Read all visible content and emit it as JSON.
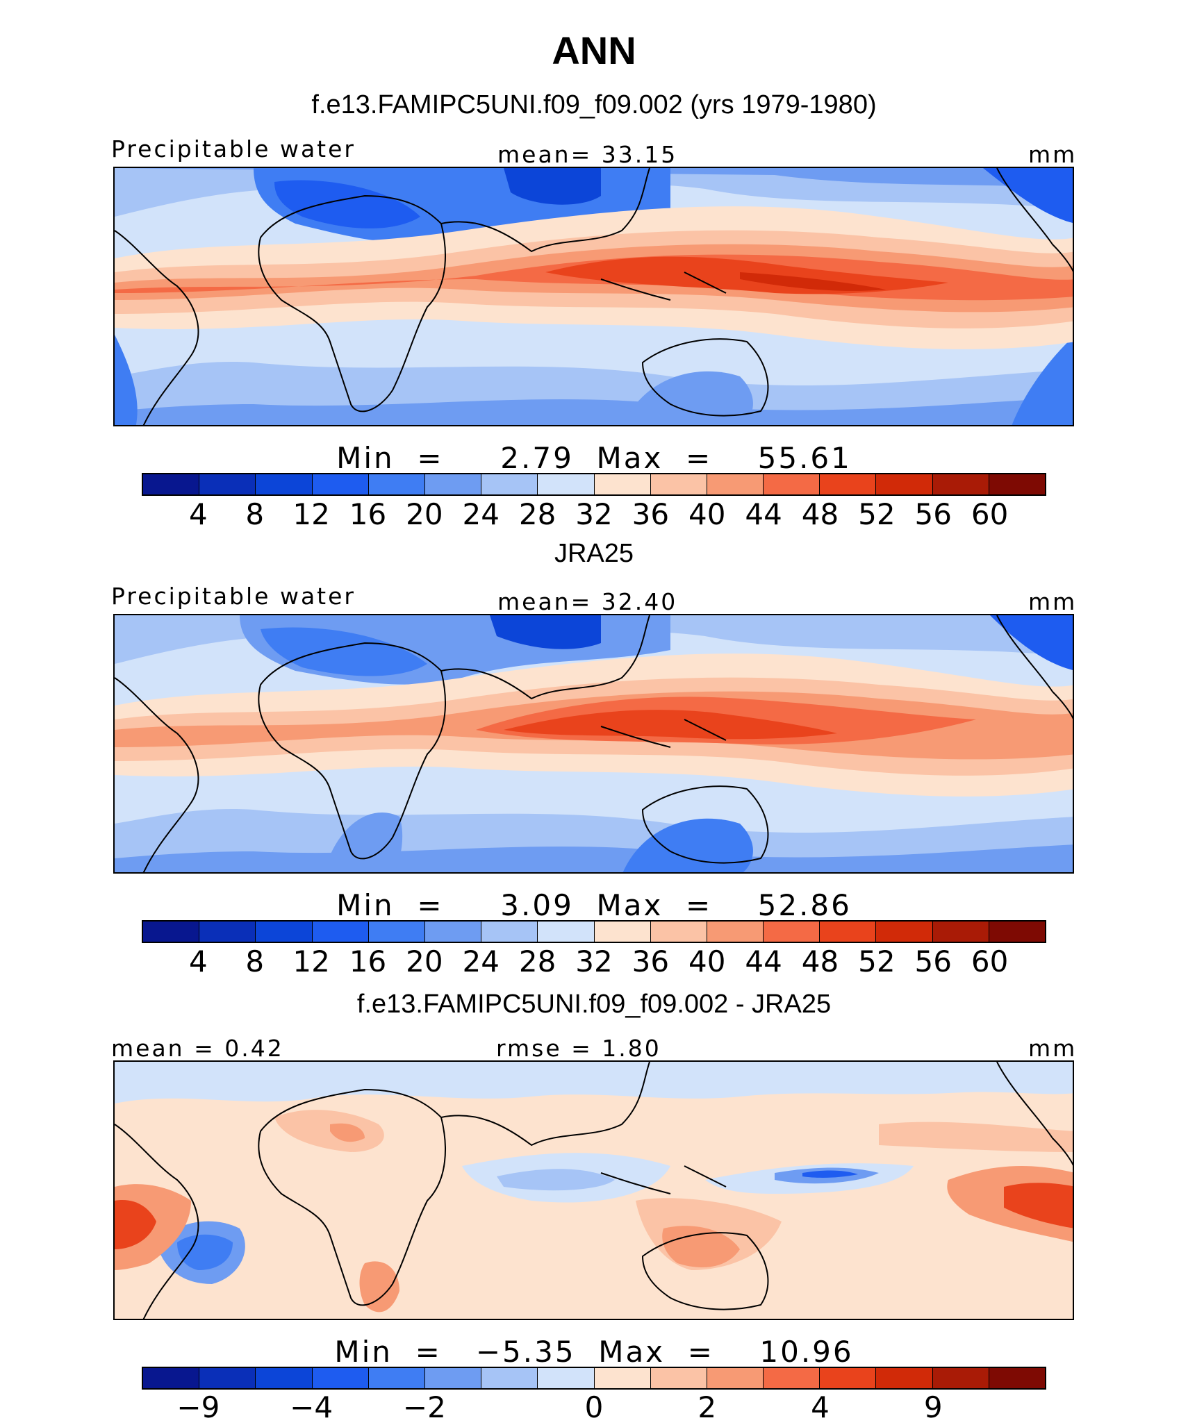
{
  "title": "ANN",
  "palettes": {
    "abs": [
      "#08178f",
      "#0a2fb8",
      "#0c45d8",
      "#1e5cf0",
      "#3f7df3",
      "#6e9cf2",
      "#a6c4f6",
      "#d2e3fa",
      "#fde3cf",
      "#fbc3a6",
      "#f79a74",
      "#f46a45",
      "#e9431c",
      "#d12a08",
      "#a91b06",
      "#7e0a03"
    ],
    "diff": [
      "#08178f",
      "#0a2fb8",
      "#0c45d8",
      "#1e5cf0",
      "#3f7df3",
      "#6e9cf2",
      "#a6c4f6",
      "#d2e3fa",
      "#fde3cf",
      "#fbc3a6",
      "#f79a74",
      "#f46a45",
      "#e9431c",
      "#d12a08",
      "#a91b06",
      "#7e0a03"
    ]
  },
  "panels": [
    {
      "title": "f.e13.FAMIPC5UNI.f09_f09.002 (yrs 1979-1980)",
      "left_label": "Precipitable water",
      "center_label": "mean=   33.15",
      "right_label": "mm",
      "minmax": "Min  =     2.79  Max  =    55.61",
      "palette": "abs",
      "ticks": [
        "4",
        "8",
        "12",
        "16",
        "20",
        "24",
        "28",
        "32",
        "36",
        "40",
        "44",
        "48",
        "52",
        "56",
        "60"
      ]
    },
    {
      "title": "JRA25",
      "left_label": "Precipitable water",
      "center_label": "mean=   32.40",
      "right_label": "mm",
      "minmax": "Min  =     3.09  Max  =    52.86",
      "palette": "abs",
      "ticks": [
        "4",
        "8",
        "12",
        "16",
        "20",
        "24",
        "28",
        "32",
        "36",
        "40",
        "44",
        "48",
        "52",
        "56",
        "60"
      ]
    },
    {
      "title": "f.e13.FAMIPC5UNI.f09_f09.002 - JRA25",
      "left_label": "mean =    0.42",
      "center_label": "rmse =    1.80",
      "right_label": "mm",
      "minmax": "Min  =   −5.35  Max  =    10.96",
      "palette": "diff",
      "ticks": [
        "−9",
        "−4",
        "−2",
        "0",
        "2",
        "4",
        "9"
      ]
    }
  ]
}
